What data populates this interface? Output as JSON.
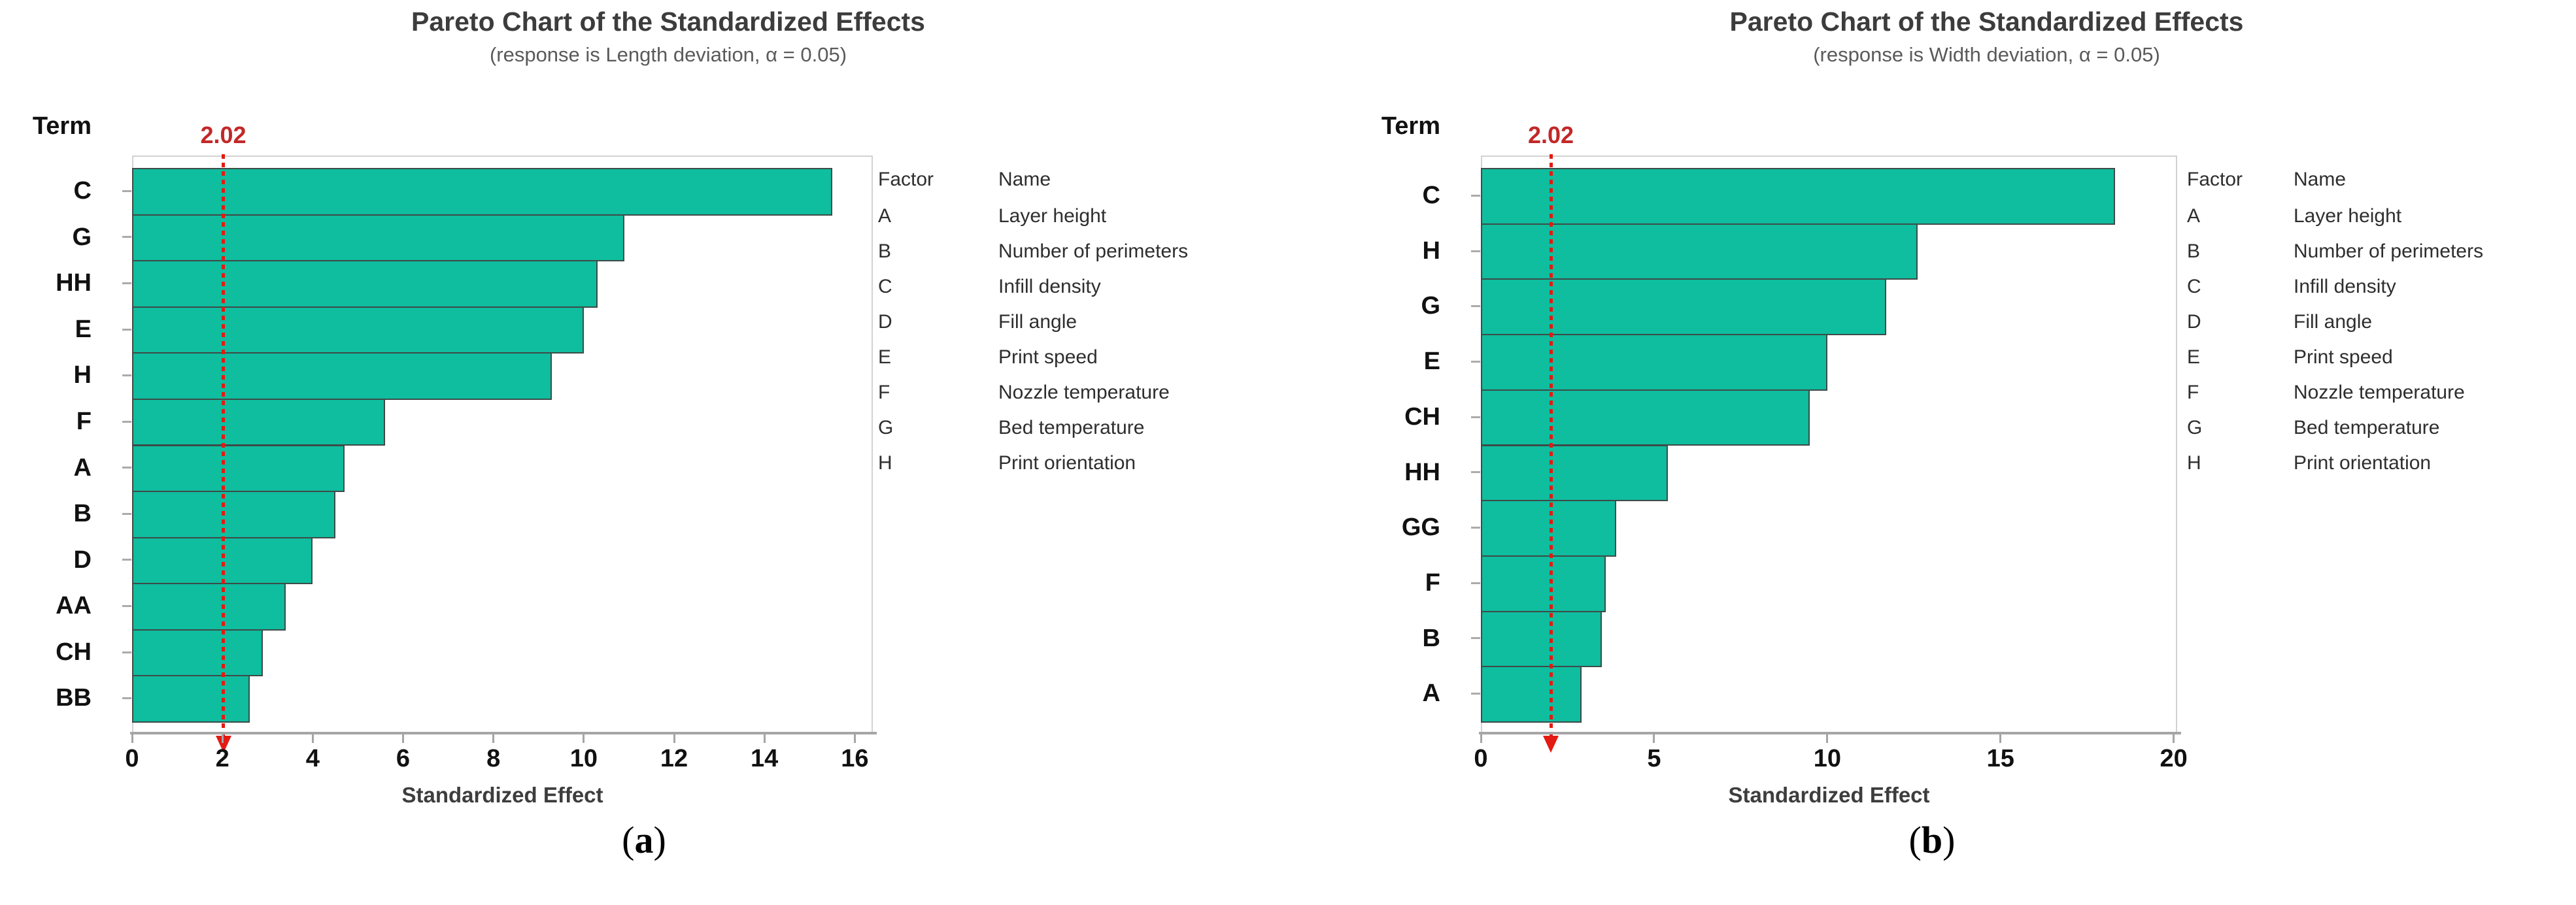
{
  "colors": {
    "bar_fill": "#0FBD9F",
    "bar_border": "#3E4B47",
    "reference_line_red": "#E31B12",
    "reference_label_red": "#C22828",
    "title_gray": "#3C3C3C",
    "subtitle_gray": "#5A5A5A",
    "axis_gray": "#A5A5A5"
  },
  "chart_data": [
    {
      "type": "bar",
      "orientation": "horizontal",
      "title": "Pareto Chart of the Standardized Effects",
      "subtitle": "(response is Length deviation, α = 0.05)",
      "term_axis_header": "Term",
      "xlabel": "Standardized Effect",
      "x_ticks": [
        0,
        2,
        4,
        6,
        8,
        10,
        12,
        14,
        16
      ],
      "xlim": [
        0,
        16.4
      ],
      "grid": "off",
      "reference_line": {
        "value": 2.02,
        "label": "2.02"
      },
      "terms": [
        "C",
        "G",
        "HH",
        "E",
        "H",
        "F",
        "A",
        "B",
        "D",
        "AA",
        "CH",
        "BB"
      ],
      "values": [
        15.5,
        10.9,
        10.3,
        10.0,
        9.3,
        5.6,
        4.7,
        4.5,
        4.0,
        3.4,
        2.9,
        2.6
      ],
      "legend": {
        "factor_header": "Factor",
        "name_header": "Name",
        "rows": [
          {
            "factor": "A",
            "name": "Layer height"
          },
          {
            "factor": "B",
            "name": "Number of perimeters"
          },
          {
            "factor": "C",
            "name": "Infill density"
          },
          {
            "factor": "D",
            "name": "Fill angle"
          },
          {
            "factor": "E",
            "name": "Print speed"
          },
          {
            "factor": "F",
            "name": "Nozzle temperature"
          },
          {
            "factor": "G",
            "name": "Bed temperature"
          },
          {
            "factor": "H",
            "name": "Print orientation"
          }
        ]
      },
      "caption": {
        "open": "(",
        "letter": "a",
        "close": ")"
      }
    },
    {
      "type": "bar",
      "orientation": "horizontal",
      "title": "Pareto Chart of the Standardized Effects",
      "subtitle": "(response is Width deviation, α = 0.05)",
      "term_axis_header": "Term",
      "xlabel": "Standardized Effect",
      "x_ticks": [
        0,
        5,
        10,
        15,
        20
      ],
      "xlim": [
        0,
        20.1
      ],
      "grid": "off",
      "reference_line": {
        "value": 2.02,
        "label": "2.02"
      },
      "terms": [
        "C",
        "H",
        "G",
        "E",
        "CH",
        "HH",
        "GG",
        "F",
        "B",
        "A"
      ],
      "values": [
        18.3,
        12.6,
        11.7,
        10.0,
        9.5,
        5.4,
        3.9,
        3.6,
        3.5,
        2.9
      ],
      "legend": {
        "factor_header": "Factor",
        "name_header": "Name",
        "rows": [
          {
            "factor": "A",
            "name": "Layer height"
          },
          {
            "factor": "B",
            "name": "Number of perimeters"
          },
          {
            "factor": "C",
            "name": "Infill density"
          },
          {
            "factor": "D",
            "name": "Fill angle"
          },
          {
            "factor": "E",
            "name": "Print speed"
          },
          {
            "factor": "F",
            "name": "Nozzle temperature"
          },
          {
            "factor": "G",
            "name": "Bed temperature"
          },
          {
            "factor": "H",
            "name": "Print orientation"
          }
        ]
      },
      "caption": {
        "open": "(",
        "letter": "b",
        "close": ")"
      }
    }
  ]
}
